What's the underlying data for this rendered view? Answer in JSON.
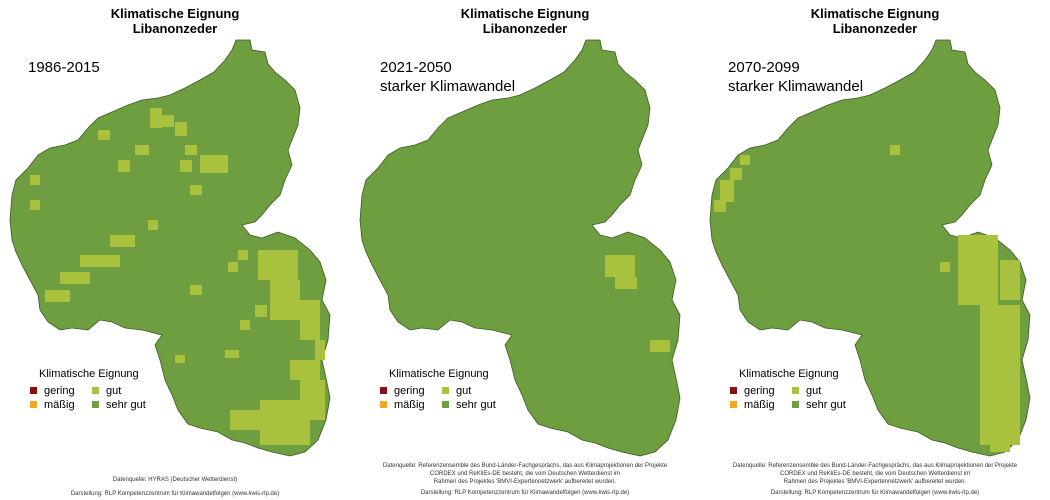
{
  "legend": {
    "title": "Klimatische Eignung",
    "items": [
      {
        "label": "gering",
        "color": "#8b1010"
      },
      {
        "label": "gut",
        "color": "#a8c23d"
      },
      {
        "label": "mäßig",
        "color": "#f5a623"
      },
      {
        "label": "sehr gut",
        "color": "#6e9e3f"
      }
    ]
  },
  "colors": {
    "sehr_gut": "#6e9e3f",
    "gut": "#a8c23d",
    "outline": "#3d5a24"
  },
  "panels": [
    {
      "title_line1": "Klimatische Eignung",
      "title_line2": "Libanonzeder",
      "period_line1": "1986-2015",
      "period_line2": "",
      "source_lines": [
        "Datenquelle: HYRAS (Deutscher Wetterdienst)",
        "",
        "Darstellung: RLP Kompetenzzentrum für Klimawandelfolgen (www.kwis-rlp.de)"
      ]
    },
    {
      "title_line1": "Klimatische Eignung",
      "title_line2": "Libanonzeder",
      "period_line1": "2021-2050",
      "period_line2": "starker Klimawandel",
      "source_lines": [
        "Datenquelle: Referenzensemble des Bund-Länder-Fachgesprächs, das aus Klimaprojektionen der Projekte",
        "CORDEX und ReKliEs-DE besteht, die vom Deutschen Wetterdienst im",
        "Rahmen des Projektes 'BMVI-Expertennetzwerk' aufbereitet wurden.",
        "Darstellung: RLP Kompetenzzentrum für Klimawandelfolgen (www.kwis-rlp.de)"
      ]
    },
    {
      "title_line1": "Klimatische Eignung",
      "title_line2": "Libanonzeder",
      "period_line1": "2070-2099",
      "period_line2": "starker Klimawandel",
      "source_lines": [
        "Datenquelle: Referenzensemble des Bund-Länder-Fachgesprächs, das aus Klimaprojektionen der Projekte",
        "CORDEX und ReKliEs-DE besteht, die vom Deutschen Wetterdienst im",
        "Rahmen des Projektes 'BMVI-Expertennetzwerk' aufbereitet wurden.",
        "Darstellung: RLP Kompetenzzentrum für Klimawandelfolgen (www.kwis-rlp.de)"
      ]
    }
  ]
}
